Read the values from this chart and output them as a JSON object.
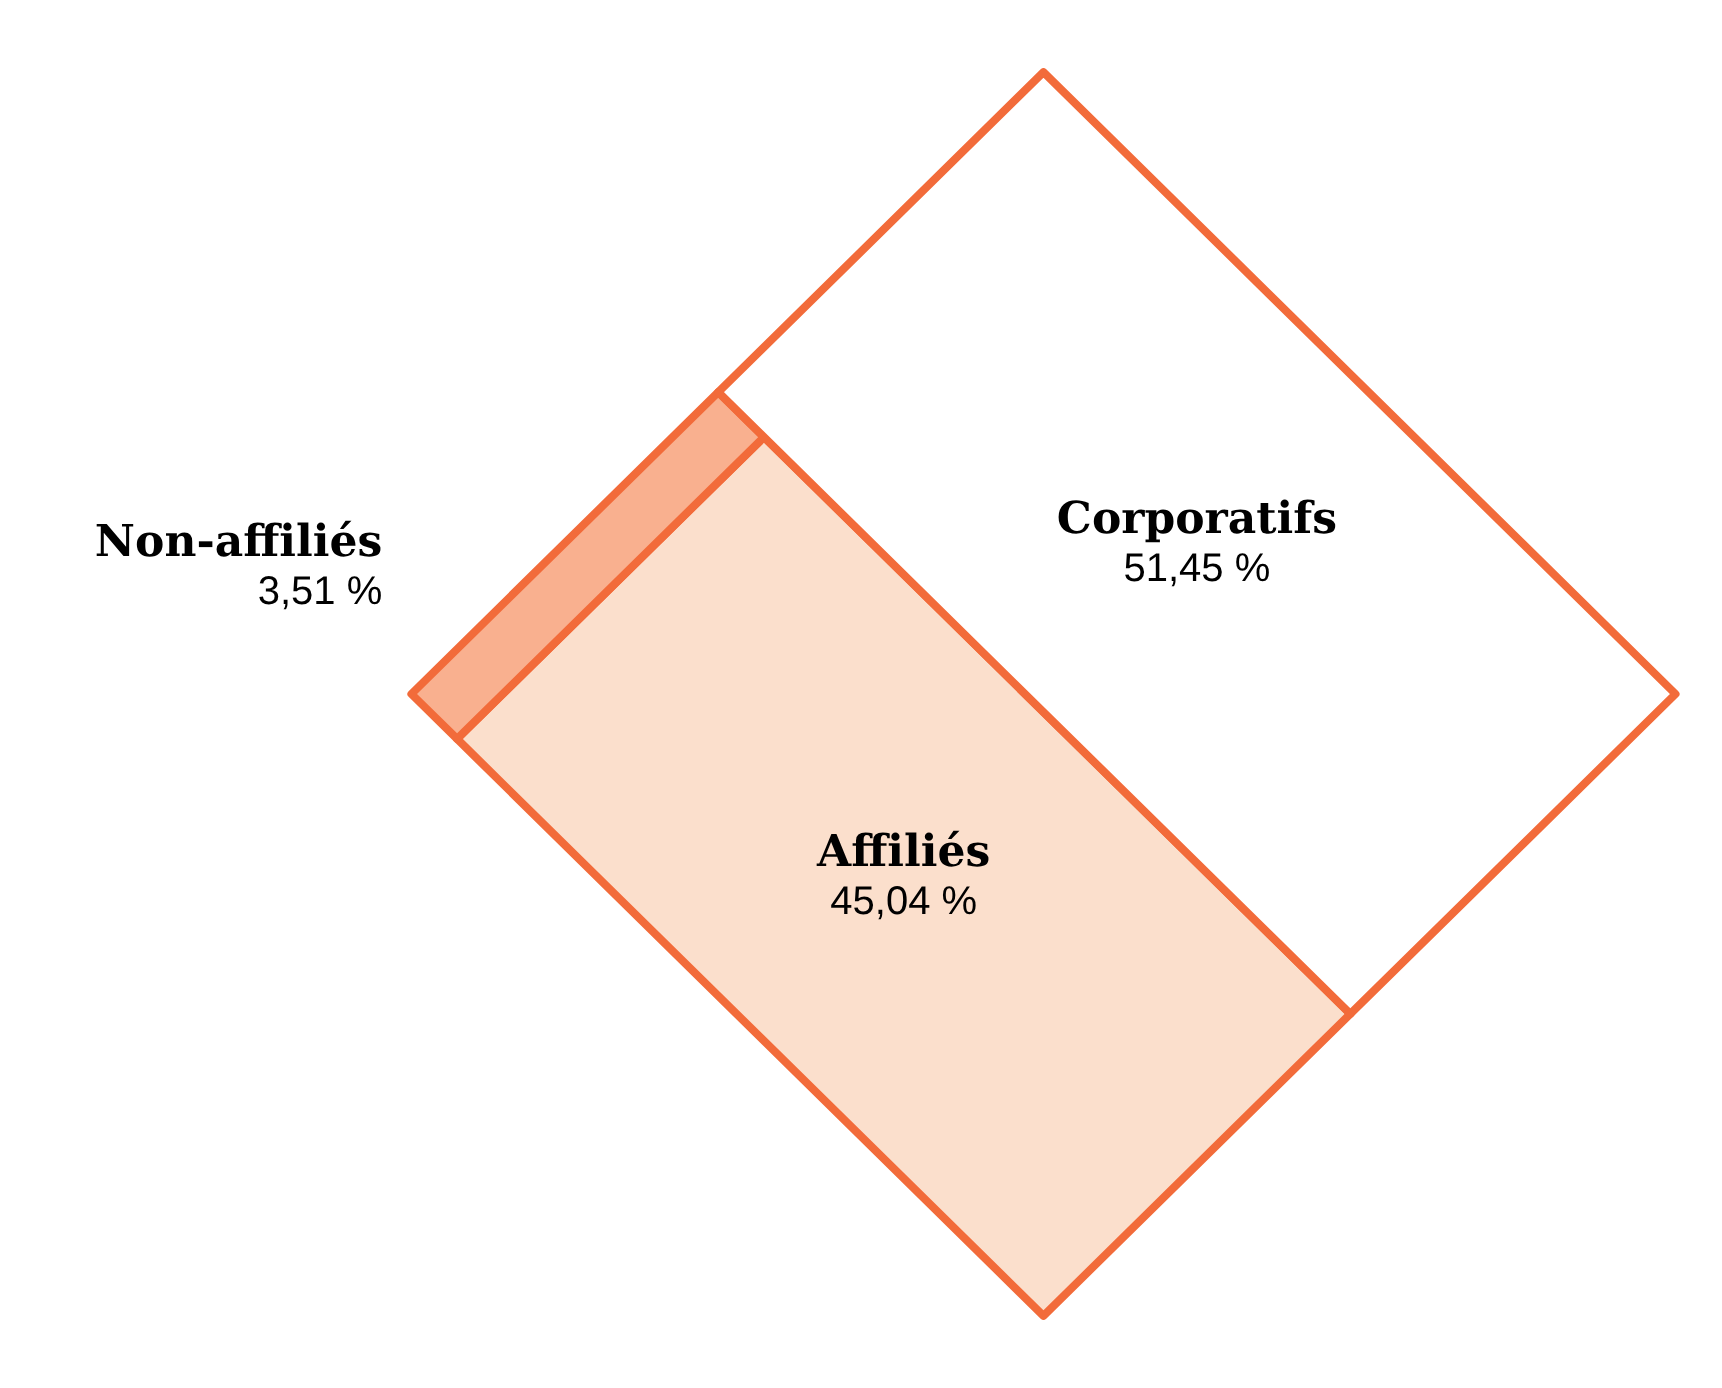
{
  "chart_data": {
    "type": "other",
    "categories": [
      "Affiliés",
      "Non-affiliés",
      "Corporatifs"
    ],
    "values": [
      45.04,
      3.51,
      51.45
    ],
    "value_labels": [
      "45,04 %",
      "3,51 %",
      "51,45 %"
    ],
    "colors": [
      "#fbdfcc",
      "#f9b08f",
      "#ffffff"
    ]
  }
}
